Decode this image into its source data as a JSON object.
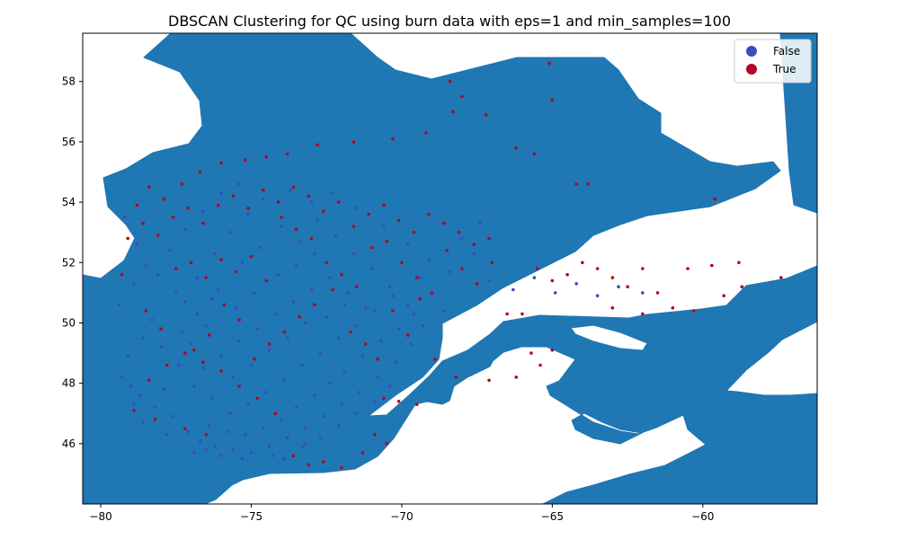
{
  "chart_data": {
    "type": "scatter",
    "title": "DBSCAN Clustering for QC using burn data with eps=1 and min_samples=100",
    "xlabel": "",
    "ylabel": "",
    "xlim": [
      -80.6,
      -56.2
    ],
    "ylim": [
      44.0,
      59.6
    ],
    "x_ticks": [
      -80,
      -75,
      -70,
      -65,
      -60
    ],
    "y_ticks": [
      46,
      48,
      50,
      52,
      54,
      56,
      58
    ],
    "x_tick_labels": [
      "−80",
      "−75",
      "−70",
      "−65",
      "−60"
    ],
    "y_tick_labels": [
      "46",
      "48",
      "50",
      "52",
      "54",
      "56",
      "58"
    ],
    "grid": false,
    "legend_position": "top-right",
    "background_map": "Quebec land area (filled)",
    "colors": {
      "land": "#1f77b4",
      "false": "#3b4cc0",
      "true": "#b40426"
    },
    "series": [
      {
        "name": "False",
        "color": "#3b4cc0",
        "points": [
          [
            -79.2,
            53.5
          ],
          [
            -78.8,
            52.6
          ],
          [
            -78.5,
            51.9
          ],
          [
            -78.9,
            51.3
          ],
          [
            -79.4,
            50.6
          ],
          [
            -78.3,
            50.1
          ],
          [
            -78.6,
            49.5
          ],
          [
            -79.1,
            48.9
          ],
          [
            -79.3,
            48.2
          ],
          [
            -78.7,
            47.6
          ],
          [
            -78.2,
            47.2
          ],
          [
            -77.6,
            46.9
          ],
          [
            -77.9,
            47.8
          ],
          [
            -77.4,
            48.6
          ],
          [
            -77.0,
            49.3
          ],
          [
            -76.5,
            49.9
          ],
          [
            -77.2,
            50.7
          ],
          [
            -76.8,
            51.5
          ],
          [
            -76.2,
            52.3
          ],
          [
            -75.7,
            53.0
          ],
          [
            -75.1,
            53.6
          ],
          [
            -74.6,
            54.1
          ],
          [
            -74.0,
            53.2
          ],
          [
            -73.4,
            52.7
          ],
          [
            -72.8,
            53.4
          ],
          [
            -72.2,
            52.9
          ],
          [
            -71.6,
            52.3
          ],
          [
            -71.0,
            51.8
          ],
          [
            -70.4,
            51.2
          ],
          [
            -69.8,
            50.6
          ],
          [
            -69.3,
            49.9
          ],
          [
            -69.7,
            49.3
          ],
          [
            -70.2,
            48.7
          ],
          [
            -70.8,
            48.2
          ],
          [
            -71.4,
            47.7
          ],
          [
            -72.0,
            47.3
          ],
          [
            -72.6,
            46.9
          ],
          [
            -73.2,
            46.5
          ],
          [
            -73.8,
            46.2
          ],
          [
            -74.4,
            45.9
          ],
          [
            -75.0,
            45.7
          ],
          [
            -75.6,
            45.8
          ],
          [
            -76.2,
            45.9
          ],
          [
            -76.7,
            46.1
          ],
          [
            -77.1,
            46.4
          ],
          [
            -76.4,
            46.6
          ],
          [
            -75.8,
            46.4
          ],
          [
            -75.2,
            46.3
          ],
          [
            -74.6,
            46.5
          ],
          [
            -74.0,
            46.8
          ],
          [
            -73.5,
            47.2
          ],
          [
            -72.9,
            47.6
          ],
          [
            -72.4,
            48.0
          ],
          [
            -71.9,
            48.4
          ],
          [
            -71.3,
            48.9
          ],
          [
            -70.7,
            49.4
          ],
          [
            -70.1,
            49.8
          ],
          [
            -69.6,
            50.3
          ],
          [
            -70.3,
            50.9
          ],
          [
            -70.9,
            50.4
          ],
          [
            -71.5,
            49.9
          ],
          [
            -72.1,
            49.5
          ],
          [
            -72.7,
            49.0
          ],
          [
            -73.3,
            48.6
          ],
          [
            -73.9,
            48.1
          ],
          [
            -74.5,
            47.7
          ],
          [
            -75.1,
            47.3
          ],
          [
            -75.7,
            47.0
          ],
          [
            -76.3,
            47.5
          ],
          [
            -76.9,
            47.9
          ],
          [
            -76.6,
            48.5
          ],
          [
            -76.0,
            48.9
          ],
          [
            -75.4,
            49.4
          ],
          [
            -74.8,
            49.8
          ],
          [
            -74.2,
            50.3
          ],
          [
            -73.6,
            50.7
          ],
          [
            -73.0,
            51.1
          ],
          [
            -72.4,
            51.5
          ],
          [
            -71.8,
            51.0
          ],
          [
            -71.2,
            50.5
          ],
          [
            -73.2,
            50.0
          ],
          [
            -73.8,
            49.5
          ],
          [
            -74.4,
            49.1
          ],
          [
            -75.0,
            48.6
          ],
          [
            -75.6,
            48.2
          ],
          [
            -76.8,
            50.3
          ],
          [
            -77.5,
            51.0
          ],
          [
            -78.1,
            51.6
          ],
          [
            -77.7,
            52.4
          ],
          [
            -77.2,
            53.1
          ],
          [
            -76.6,
            53.7
          ],
          [
            -76.0,
            54.3
          ],
          [
            -75.4,
            54.6
          ],
          [
            -73.7,
            54.4
          ],
          [
            -73.0,
            54.0
          ],
          [
            -72.3,
            54.3
          ],
          [
            -71.5,
            53.8
          ],
          [
            -70.6,
            53.2
          ],
          [
            -69.8,
            52.6
          ],
          [
            -69.1,
            52.1
          ],
          [
            -68.4,
            51.7
          ],
          [
            -67.6,
            52.3
          ],
          [
            -67.1,
            51.4
          ],
          [
            -66.3,
            51.1
          ],
          [
            -65.6,
            51.5
          ],
          [
            -64.9,
            51.0
          ],
          [
            -64.2,
            51.3
          ],
          [
            -63.5,
            50.9
          ],
          [
            -62.8,
            51.2
          ],
          [
            -62.0,
            51.0
          ],
          [
            -68.6,
            50.4
          ],
          [
            -69.0,
            50.9
          ],
          [
            -69.4,
            51.5
          ],
          [
            -68.0,
            52.8
          ],
          [
            -67.4,
            53.3
          ],
          [
            -74.9,
            51.0
          ],
          [
            -75.5,
            50.5
          ],
          [
            -76.1,
            51.1
          ],
          [
            -75.3,
            52.0
          ],
          [
            -74.7,
            52.5
          ],
          [
            -74.1,
            51.6
          ],
          [
            -73.5,
            51.9
          ],
          [
            -72.9,
            52.3
          ],
          [
            -72.5,
            50.2
          ],
          [
            -71.9,
            50.6
          ],
          [
            -79.0,
            47.9
          ],
          [
            -78.9,
            47.3
          ],
          [
            -78.6,
            46.7
          ],
          [
            -77.8,
            46.3
          ],
          [
            -76.9,
            45.7
          ],
          [
            -73.9,
            45.5
          ],
          [
            -73.3,
            45.9
          ],
          [
            -72.7,
            46.2
          ],
          [
            -72.1,
            46.6
          ],
          [
            -71.5,
            47.0
          ],
          [
            -70.9,
            47.4
          ],
          [
            -70.4,
            47.9
          ],
          [
            -78.0,
            49.2
          ],
          [
            -77.3,
            49.7
          ],
          [
            -76.3,
            50.8
          ],
          [
            -73.2,
            46.0
          ],
          [
            -74.3,
            45.6
          ],
          [
            -75.3,
            45.5
          ],
          [
            -76.0,
            45.6
          ],
          [
            -76.5,
            45.8
          ]
        ]
      },
      {
        "name": "True",
        "color": "#b40426",
        "points": [
          [
            -79.3,
            51.6
          ],
          [
            -78.8,
            53.9
          ],
          [
            -78.4,
            54.5
          ],
          [
            -77.9,
            54.1
          ],
          [
            -77.3,
            54.6
          ],
          [
            -76.7,
            55.0
          ],
          [
            -76.0,
            55.3
          ],
          [
            -75.2,
            55.4
          ],
          [
            -74.5,
            55.5
          ],
          [
            -73.8,
            55.6
          ],
          [
            -72.8,
            55.9
          ],
          [
            -71.6,
            56.0
          ],
          [
            -70.3,
            56.1
          ],
          [
            -69.2,
            56.3
          ],
          [
            -68.3,
            57.0
          ],
          [
            -68.4,
            58.0
          ],
          [
            -68.0,
            57.5
          ],
          [
            -67.2,
            56.9
          ],
          [
            -66.2,
            55.8
          ],
          [
            -65.6,
            55.6
          ],
          [
            -64.2,
            54.6
          ],
          [
            -63.8,
            54.6
          ],
          [
            -65.1,
            58.6
          ],
          [
            -65.0,
            57.4
          ],
          [
            -59.6,
            54.1
          ],
          [
            -78.5,
            50.4
          ],
          [
            -78.0,
            49.8
          ],
          [
            -77.5,
            51.8
          ],
          [
            -77.0,
            52.0
          ],
          [
            -76.5,
            51.5
          ],
          [
            -76.0,
            52.1
          ],
          [
            -75.5,
            51.7
          ],
          [
            -75.0,
            52.2
          ],
          [
            -74.5,
            51.4
          ],
          [
            -74.0,
            53.5
          ],
          [
            -73.5,
            53.1
          ],
          [
            -73.0,
            52.8
          ],
          [
            -72.5,
            52.0
          ],
          [
            -72.0,
            51.6
          ],
          [
            -71.5,
            51.2
          ],
          [
            -71.0,
            52.5
          ],
          [
            -70.5,
            52.7
          ],
          [
            -70.0,
            52.0
          ],
          [
            -69.5,
            51.5
          ],
          [
            -69.0,
            51.0
          ],
          [
            -68.5,
            52.4
          ],
          [
            -68.0,
            51.8
          ],
          [
            -67.5,
            51.3
          ],
          [
            -67.0,
            52.0
          ],
          [
            -66.5,
            50.3
          ],
          [
            -66.0,
            50.3
          ],
          [
            -65.5,
            51.8
          ],
          [
            -65.0,
            51.4
          ],
          [
            -64.5,
            51.6
          ],
          [
            -64.0,
            52.0
          ],
          [
            -63.5,
            51.8
          ],
          [
            -63.0,
            51.5
          ],
          [
            -62.5,
            51.2
          ],
          [
            -62.0,
            51.8
          ],
          [
            -61.5,
            51.0
          ],
          [
            -61.0,
            50.5
          ],
          [
            -60.5,
            51.8
          ],
          [
            -59.7,
            51.9
          ],
          [
            -58.8,
            52.0
          ],
          [
            -57.4,
            51.5
          ],
          [
            -58.7,
            51.2
          ],
          [
            -59.3,
            50.9
          ],
          [
            -60.3,
            50.4
          ],
          [
            -62.0,
            50.3
          ],
          [
            -63.0,
            50.5
          ],
          [
            -65.7,
            49.0
          ],
          [
            -65.4,
            48.6
          ],
          [
            -65.0,
            49.1
          ],
          [
            -66.2,
            48.2
          ],
          [
            -67.1,
            48.1
          ],
          [
            -68.2,
            48.2
          ],
          [
            -68.9,
            48.8
          ],
          [
            -69.5,
            47.3
          ],
          [
            -70.1,
            47.4
          ],
          [
            -70.6,
            47.5
          ],
          [
            -70.5,
            46.0
          ],
          [
            -70.9,
            46.3
          ],
          [
            -71.3,
            45.7
          ],
          [
            -72.0,
            45.2
          ],
          [
            -72.6,
            45.4
          ],
          [
            -73.1,
            45.3
          ],
          [
            -73.6,
            45.6
          ],
          [
            -74.2,
            47.0
          ],
          [
            -74.8,
            47.5
          ],
          [
            -75.4,
            47.9
          ],
          [
            -76.0,
            48.4
          ],
          [
            -76.6,
            48.7
          ],
          [
            -77.2,
            49.0
          ],
          [
            -77.8,
            48.6
          ],
          [
            -78.4,
            48.1
          ],
          [
            -78.9,
            47.1
          ],
          [
            -78.2,
            46.8
          ],
          [
            -77.2,
            46.5
          ],
          [
            -76.5,
            46.3
          ],
          [
            -79.1,
            52.8
          ],
          [
            -78.6,
            53.3
          ],
          [
            -78.1,
            52.9
          ],
          [
            -77.6,
            53.5
          ],
          [
            -77.1,
            53.8
          ],
          [
            -76.6,
            53.3
          ],
          [
            -76.1,
            53.9
          ],
          [
            -75.6,
            54.2
          ],
          [
            -75.1,
            53.8
          ],
          [
            -74.6,
            54.4
          ],
          [
            -74.1,
            54.0
          ],
          [
            -73.6,
            54.5
          ],
          [
            -73.1,
            54.2
          ],
          [
            -72.6,
            53.7
          ],
          [
            -72.1,
            54.0
          ],
          [
            -71.6,
            53.2
          ],
          [
            -71.1,
            53.6
          ],
          [
            -70.6,
            53.9
          ],
          [
            -70.1,
            53.4
          ],
          [
            -69.6,
            53.0
          ],
          [
            -69.1,
            53.6
          ],
          [
            -68.6,
            53.3
          ],
          [
            -68.1,
            53.0
          ],
          [
            -67.6,
            52.6
          ],
          [
            -67.1,
            52.8
          ],
          [
            -72.3,
            51.1
          ],
          [
            -72.9,
            50.6
          ],
          [
            -73.4,
            50.2
          ],
          [
            -73.9,
            49.7
          ],
          [
            -74.4,
            49.3
          ],
          [
            -74.9,
            48.8
          ],
          [
            -75.4,
            50.1
          ],
          [
            -75.9,
            50.6
          ],
          [
            -76.4,
            49.6
          ],
          [
            -76.9,
            49.1
          ],
          [
            -71.7,
            49.7
          ],
          [
            -71.2,
            49.3
          ],
          [
            -70.8,
            48.8
          ],
          [
            -70.3,
            50.4
          ],
          [
            -69.8,
            49.6
          ],
          [
            -69.4,
            50.8
          ]
        ]
      }
    ]
  },
  "legend": {
    "items": [
      {
        "label": "False",
        "color": "#3b4cc0"
      },
      {
        "label": "True",
        "color": "#b40426"
      }
    ]
  }
}
